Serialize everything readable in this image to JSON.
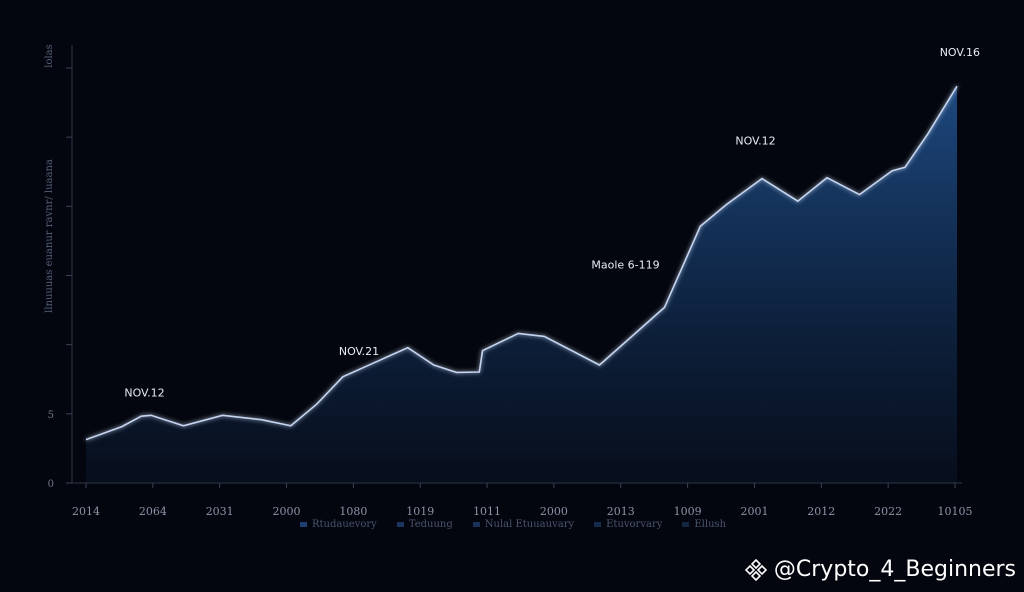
{
  "chart_data": {
    "type": "area",
    "title": "",
    "xlabel": "",
    "ylabel": "",
    "x_tick_labels": [
      "2014",
      "2064",
      "2031",
      "2000",
      "1080",
      "1019",
      "1011",
      "2000",
      "2013",
      "1009",
      "2001",
      "2012",
      "2022",
      "10105"
    ],
    "y_tick_labels": [
      "0",
      "5",
      "",
      "",
      "",
      "",
      ""
    ],
    "series": [
      {
        "points": [
          {
            "x": 0,
            "y": 10
          },
          {
            "x": 0.55,
            "y": 13
          },
          {
            "x": 0.85,
            "y": 15.4
          },
          {
            "x": 1.0,
            "y": 15.6
          },
          {
            "x": 1.5,
            "y": 13.2
          },
          {
            "x": 2.1,
            "y": 15.6
          },
          {
            "x": 2.7,
            "y": 14.6
          },
          {
            "x": 3.15,
            "y": 13.2
          },
          {
            "x": 3.55,
            "y": 18.2
          },
          {
            "x": 3.95,
            "y": 24.5
          },
          {
            "x": 4.4,
            "y": 27.5
          },
          {
            "x": 4.95,
            "y": 31.2
          },
          {
            "x": 5.35,
            "y": 27.2
          },
          {
            "x": 5.7,
            "y": 25.5
          },
          {
            "x": 6.05,
            "y": 25.6
          },
          {
            "x": 6.1,
            "y": 30.5
          },
          {
            "x": 6.65,
            "y": 34.5
          },
          {
            "x": 7.05,
            "y": 33.8
          },
          {
            "x": 7.9,
            "y": 27.2
          },
          {
            "x": 8.9,
            "y": 40.5
          },
          {
            "x": 9.45,
            "y": 59.2
          },
          {
            "x": 9.85,
            "y": 64.2
          },
          {
            "x": 10.4,
            "y": 70.2
          },
          {
            "x": 10.95,
            "y": 65.0
          },
          {
            "x": 11.4,
            "y": 70.4
          },
          {
            "x": 11.9,
            "y": 66.5
          },
          {
            "x": 12.4,
            "y": 72.0
          },
          {
            "x": 12.6,
            "y": 72.8
          },
          {
            "x": 12.95,
            "y": 80.5
          },
          {
            "x": 13.4,
            "y": 91.5
          }
        ]
      }
    ],
    "annotations": [
      {
        "text": "NOV.12",
        "x": 0.9,
        "y": 20
      },
      {
        "text": "NOV.21",
        "x": 4.2,
        "y": 29.5
      },
      {
        "text": "Maole 6-119",
        "x": 8.3,
        "y": 49.5
      },
      {
        "text": "NOV.12",
        "x": 10.3,
        "y": 78
      },
      {
        "text": "NOV.16",
        "x": 13.4,
        "y": 98.5
      }
    ],
    "xlim": [
      0,
      13.4
    ],
    "ylim": [
      0,
      101
    ],
    "grid": false,
    "legend_position": "bottom-center"
  },
  "ylabel_text": "llnuuuas euanur ravnr/ luaana",
  "yaxis_top_label": "lolas",
  "legend": [
    {
      "label": "Rtudauevory",
      "color": "#1f3f73"
    },
    {
      "label": "Teduung",
      "color": "#1c3560"
    },
    {
      "label": "Nulal Etuuauvary",
      "color": "#1a3158"
    },
    {
      "label": "Etuvorvary",
      "color": "#152b4c"
    },
    {
      "label": "Ellush",
      "color": "#132640"
    }
  ],
  "watermark": {
    "handle": "@Crypto_4_Beginners"
  },
  "colors": {
    "line": "#c5d4ef",
    "area_top": "#1a4070",
    "axis": "#3a4256"
  }
}
